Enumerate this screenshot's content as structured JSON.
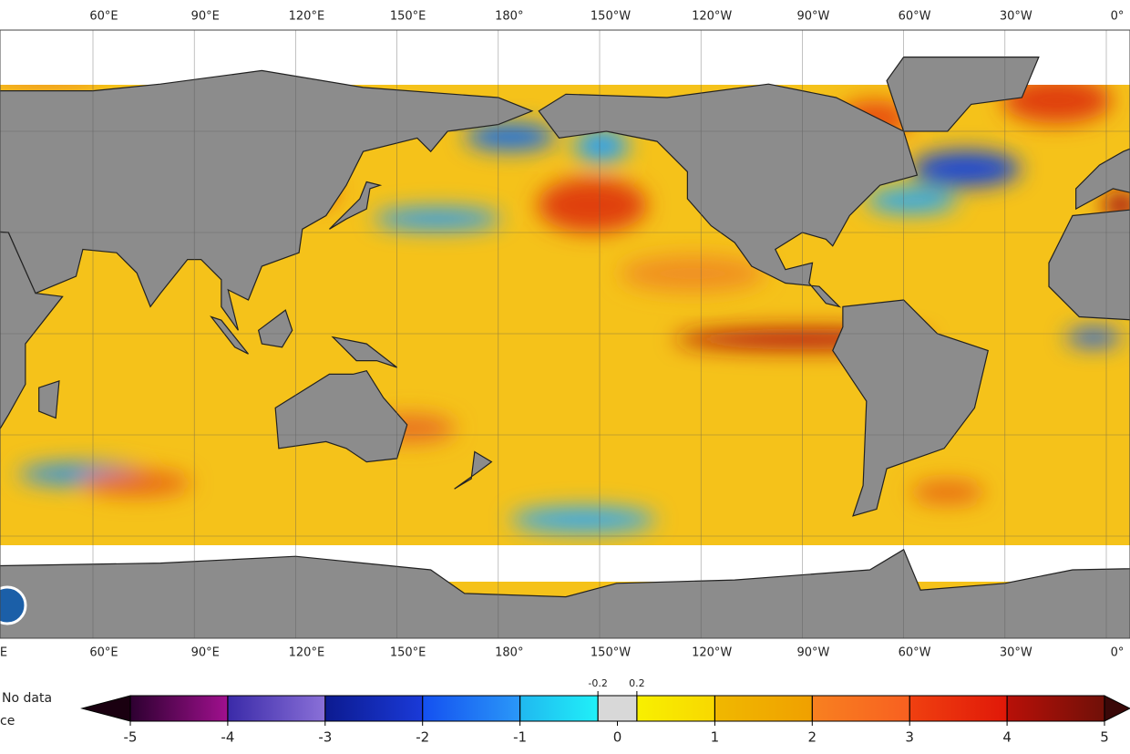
{
  "map": {
    "longitude_labels_top": [
      "60°E",
      "90°E",
      "120°E",
      "150°E",
      "180°",
      "150°W",
      "120°W",
      "90°W",
      "60°W",
      "30°W",
      "0°"
    ],
    "longitude_labels_bottom": [
      "E",
      "60°E",
      "90°E",
      "120°E",
      "150°E",
      "180°",
      "150°W",
      "120°W",
      "90°W",
      "60°W",
      "30°W",
      "0°"
    ]
  },
  "legend": {
    "no_data": "No data",
    "ice": "ce"
  },
  "colorbar": {
    "bins": [
      -5,
      -4,
      -3,
      -2,
      -1,
      -0.2,
      0.2,
      1,
      2,
      3,
      4,
      5
    ],
    "colors": [
      [
        "#2d0030",
        "#a0108e"
      ],
      [
        "#3a2aa8",
        "#8a70d8"
      ],
      [
        "#0c1a90",
        "#1a3ad8"
      ],
      [
        "#1450f0",
        "#2a98f8"
      ],
      [
        "#20b8f0",
        "#20f0f8"
      ],
      [
        "#d8d8d8",
        "#d8d8d8"
      ],
      [
        "#f8f000",
        "#f8d800"
      ],
      [
        "#f0b800",
        "#f0a000"
      ],
      [
        "#f88020",
        "#f86020"
      ],
      [
        "#f04010",
        "#e01808"
      ],
      [
        "#b81008",
        "#701008"
      ]
    ],
    "under_color": "#1a0010",
    "over_color": "#3a0808",
    "ticks": [
      -5,
      -4,
      -3,
      -2,
      -1,
      0,
      1,
      2,
      3,
      4,
      5
    ],
    "minor_ticks": [
      -0.2,
      0.2
    ]
  }
}
